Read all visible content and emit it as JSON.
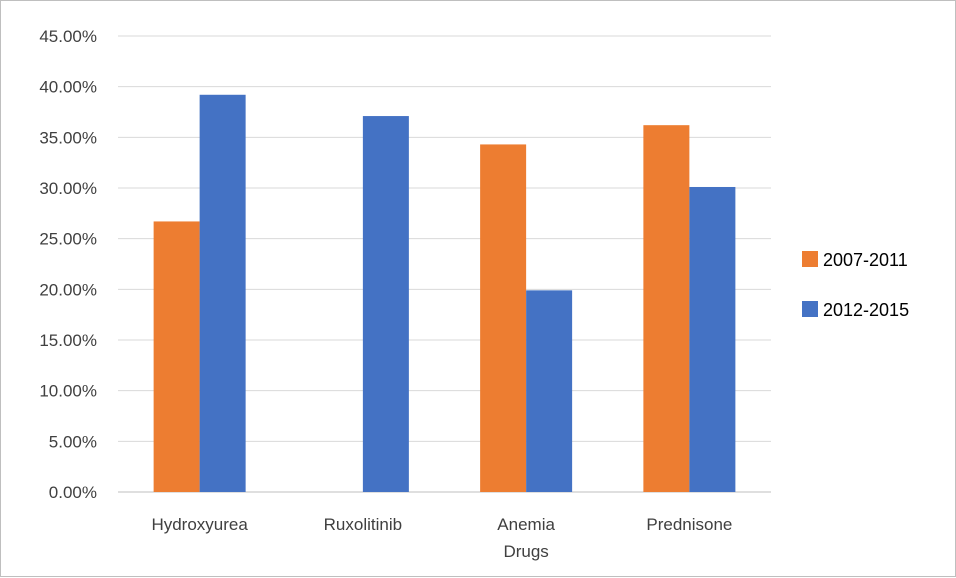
{
  "chart_data": {
    "type": "bar",
    "title": "",
    "xlabel": "",
    "ylabel": "",
    "categories": [
      [
        "Hydroxyurea"
      ],
      [
        "Ruxolitinib"
      ],
      [
        "Anemia",
        "Drugs"
      ],
      [
        "Prednisone"
      ]
    ],
    "series": [
      {
        "name": "2007-2011",
        "color": "#ed7d31",
        "values": [
          26.7,
          0,
          34.3,
          36.2
        ]
      },
      {
        "name": "2012-2015",
        "color": "#4472c4",
        "values": [
          39.2,
          37.1,
          19.9,
          30.1
        ]
      }
    ],
    "ylim": [
      0,
      45
    ],
    "y_ticks": [
      "0.00%",
      "5.00%",
      "10.00%",
      "15.00%",
      "20.00%",
      "25.00%",
      "30.00%",
      "35.00%",
      "40.00%",
      "45.00%"
    ],
    "grid": true,
    "legend_position": "right"
  }
}
